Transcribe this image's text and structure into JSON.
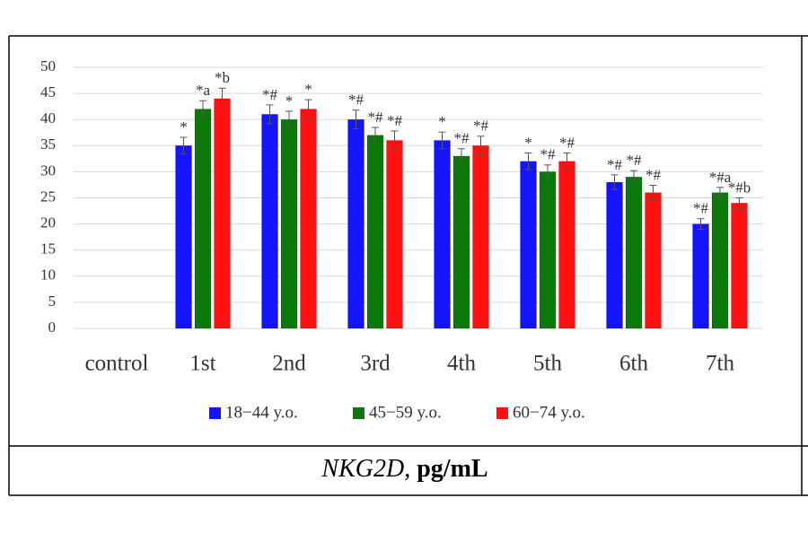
{
  "chart_data": {
    "type": "bar",
    "categories": [
      "control",
      "1st",
      "2nd",
      "3rd",
      "4th",
      "5th",
      "6th",
      "7th"
    ],
    "series": [
      {
        "name": "18−44 y.o.",
        "color": "#1414ff",
        "values": [
          null,
          35,
          41,
          40,
          36,
          32,
          28,
          20
        ],
        "errors": [
          null,
          1.6,
          1.8,
          1.8,
          1.6,
          1.6,
          1.4,
          1.0
        ],
        "annotations": [
          null,
          "*",
          "*#",
          "*#",
          "*",
          "*",
          "*#",
          "*#"
        ]
      },
      {
        "name": "45−59 y.o.",
        "color": "#0a780a",
        "values": [
          null,
          42,
          40,
          37,
          33,
          30,
          29,
          26
        ],
        "errors": [
          null,
          1.6,
          1.6,
          1.5,
          1.4,
          1.3,
          1.2,
          1.0
        ],
        "annotations": [
          null,
          "*a",
          "*",
          "*#",
          "*#",
          "*#",
          "*#",
          "*#a"
        ]
      },
      {
        "name": "60−74 y.o.",
        "color": "#ff1010",
        "values": [
          null,
          44,
          42,
          36,
          35,
          32,
          26,
          24
        ],
        "errors": [
          null,
          2.0,
          1.8,
          1.8,
          1.8,
          1.6,
          1.4,
          1.0
        ],
        "annotations": [
          null,
          "*b",
          "*",
          "*#",
          "*#",
          "*#",
          "*#",
          "*#b"
        ]
      }
    ],
    "ylim": [
      0,
      50
    ],
    "yticks": [
      0,
      5,
      10,
      15,
      20,
      25,
      30,
      35,
      40,
      45,
      50
    ],
    "grid": true
  },
  "caption": {
    "italic": "NKG2D,",
    "text": "pg/mL"
  }
}
